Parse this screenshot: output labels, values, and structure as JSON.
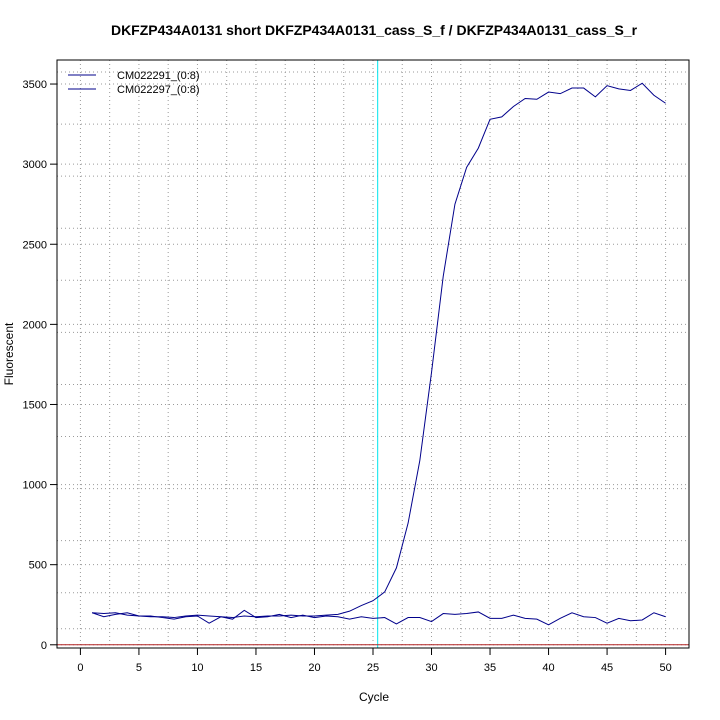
{
  "chart_data": {
    "type": "line",
    "title": "DKFZP434A0131 short DKFZP434A0131_cass_S_f / DKFZP434A0131_cass_S_r",
    "xlabel": "Cycle",
    "ylabel": "Fluorescent",
    "xlim": [
      -2,
      52
    ],
    "ylim": [
      -20,
      3650
    ],
    "x_ticks": [
      0,
      5,
      10,
      15,
      20,
      25,
      30,
      35,
      40,
      45,
      50
    ],
    "y_ticks": [
      0,
      500,
      1000,
      1500,
      2000,
      2500,
      3000,
      3500
    ],
    "x_grid": [
      2.5,
      7.5,
      12.5,
      17.5,
      22.5,
      27.5,
      32.5,
      37.5,
      42.5,
      47.5
    ],
    "y_grid": [
      100,
      325,
      650,
      975,
      1300,
      1625,
      1950,
      2275,
      2600,
      2925,
      3250,
      3575
    ],
    "grid": true,
    "legend_position": "top-left",
    "threshold_x": 25.4,
    "baseline_y": 0,
    "colors": {
      "series": "#00008b",
      "threshold": "#00e5ee",
      "baseline": "#b22222",
      "grid": "#9a9a9a",
      "axes": "#000000"
    },
    "x": [
      1,
      2,
      3,
      4,
      5,
      6,
      7,
      8,
      9,
      10,
      11,
      12,
      13,
      14,
      15,
      16,
      17,
      18,
      19,
      20,
      21,
      22,
      23,
      24,
      25,
      26,
      27,
      28,
      29,
      30,
      31,
      32,
      33,
      34,
      35,
      36,
      37,
      38,
      39,
      40,
      41,
      42,
      43,
      44,
      45,
      46,
      47,
      48,
      49,
      50
    ],
    "series": [
      {
        "name": "CM022291_(0:8)",
        "values": [
          200,
          195,
          200,
          185,
          180,
          175,
          175,
          170,
          180,
          185,
          180,
          175,
          170,
          180,
          175,
          180,
          180,
          185,
          180,
          180,
          185,
          190,
          210,
          245,
          275,
          330,
          480,
          760,
          1150,
          1700,
          2300,
          2750,
          2980,
          3100,
          3280,
          3295,
          3360,
          3410,
          3405,
          3450,
          3440,
          3475,
          3475,
          3420,
          3490,
          3470,
          3460,
          3505,
          3430,
          3380
        ]
      },
      {
        "name": "CM022297_(0:8)",
        "values": [
          200,
          175,
          190,
          200,
          180,
          180,
          170,
          160,
          175,
          180,
          135,
          175,
          160,
          215,
          170,
          175,
          190,
          170,
          185,
          170,
          180,
          175,
          160,
          175,
          165,
          170,
          130,
          170,
          170,
          145,
          195,
          190,
          195,
          205,
          165,
          165,
          185,
          165,
          160,
          125,
          165,
          200,
          175,
          170,
          135,
          165,
          150,
          155,
          200,
          175
        ]
      }
    ]
  }
}
